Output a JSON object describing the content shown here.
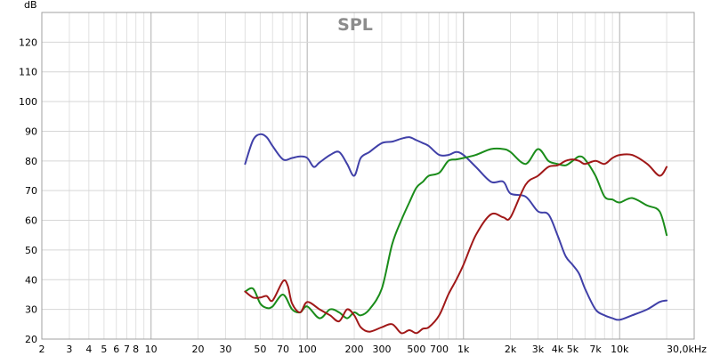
{
  "chart_data": {
    "type": "line",
    "title": "SPL",
    "ylabel": "dB",
    "xunit_label": "30,0kHz",
    "x_scale": "log",
    "xlim": [
      2,
      30000
    ],
    "ylim": [
      20,
      130
    ],
    "grid": true,
    "legend": "none",
    "y_ticks": [
      20,
      30,
      40,
      50,
      60,
      70,
      80,
      90,
      100,
      110,
      120
    ],
    "x_ticks": [
      {
        "value": 2,
        "label": "2"
      },
      {
        "value": 3,
        "label": "3"
      },
      {
        "value": 4,
        "label": "4"
      },
      {
        "value": 5,
        "label": "5"
      },
      {
        "value": 6,
        "label": "6"
      },
      {
        "value": 7,
        "label": "7"
      },
      {
        "value": 8,
        "label": "8"
      },
      {
        "value": 10,
        "label": "10"
      },
      {
        "value": 20,
        "label": "20"
      },
      {
        "value": 30,
        "label": "30"
      },
      {
        "value": 50,
        "label": "50"
      },
      {
        "value": 70,
        "label": "70"
      },
      {
        "value": 100,
        "label": "100"
      },
      {
        "value": 200,
        "label": "200"
      },
      {
        "value": 300,
        "label": "300"
      },
      {
        "value": 500,
        "label": "500"
      },
      {
        "value": 700,
        "label": "700"
      },
      {
        "value": 1000,
        "label": "1k"
      },
      {
        "value": 2000,
        "label": "2k"
      },
      {
        "value": 3000,
        "label": "3k"
      },
      {
        "value": 4000,
        "label": "4k"
      },
      {
        "value": 5000,
        "label": "5k"
      },
      {
        "value": 7000,
        "label": "7k"
      },
      {
        "value": 10000,
        "label": "10k"
      }
    ],
    "series": [
      {
        "color": "#4040a8",
        "x": [
          40,
          45,
          50,
          55,
          60,
          70,
          80,
          90,
          100,
          110,
          120,
          140,
          160,
          180,
          200,
          220,
          250,
          300,
          350,
          400,
          450,
          500,
          550,
          600,
          700,
          800,
          900,
          1000,
          1200,
          1500,
          1800,
          2000,
          2500,
          3000,
          3500,
          4000,
          4500,
          5000,
          5500,
          6000,
          7000,
          8000,
          9000,
          10000,
          12000,
          15000,
          18000,
          20000
        ],
        "y": [
          79,
          87,
          89,
          88,
          85,
          80.5,
          81,
          81.5,
          81,
          78,
          79.5,
          82,
          83,
          79,
          75,
          81,
          83,
          86,
          86.5,
          87.5,
          88,
          87,
          86,
          85,
          82,
          82,
          83,
          82,
          78,
          73,
          73,
          69,
          68,
          63,
          62,
          55,
          48,
          45,
          42,
          37,
          30,
          28,
          27,
          26.5,
          28,
          30,
          32.5,
          33
        ]
      },
      {
        "color": "#1a8c1a",
        "x": [
          40,
          45,
          50,
          55,
          60,
          70,
          80,
          90,
          100,
          120,
          140,
          160,
          180,
          200,
          220,
          250,
          300,
          350,
          400,
          450,
          500,
          550,
          600,
          700,
          800,
          900,
          1000,
          1200,
          1500,
          1800,
          2000,
          2500,
          3000,
          3500,
          4000,
          4500,
          5000,
          5500,
          6000,
          7000,
          8000,
          9000,
          10000,
          12000,
          15000,
          18000,
          20000
        ],
        "y": [
          36,
          37,
          32,
          30.5,
          31,
          35,
          30,
          29,
          31,
          27,
          30,
          29,
          27,
          29,
          28,
          30,
          37,
          52,
          60,
          66,
          71,
          73,
          75,
          76,
          80,
          80.5,
          81,
          82,
          84,
          84,
          83,
          79,
          84,
          80,
          79,
          78.5,
          80,
          81.5,
          80.5,
          75,
          68,
          67,
          66,
          67.5,
          65,
          63,
          55
        ]
      },
      {
        "color": "#a01818",
        "x": [
          40,
          45,
          50,
          55,
          60,
          70,
          75,
          80,
          90,
          100,
          120,
          140,
          160,
          180,
          200,
          220,
          250,
          300,
          350,
          400,
          450,
          500,
          550,
          600,
          700,
          800,
          900,
          1000,
          1200,
          1500,
          1800,
          2000,
          2500,
          3000,
          3500,
          4000,
          4500,
          5000,
          5500,
          6000,
          7000,
          8000,
          9000,
          10000,
          12000,
          15000,
          18000,
          20000
        ],
        "y": [
          36,
          34,
          34,
          34.5,
          33,
          39.5,
          38,
          32,
          29,
          32.5,
          30,
          28,
          26,
          30,
          28,
          24,
          22.5,
          24,
          25,
          22,
          23,
          22,
          23.5,
          24,
          28,
          35,
          40,
          45,
          55,
          62,
          61,
          61,
          72,
          75,
          78,
          78.5,
          80,
          80.5,
          80,
          79,
          80,
          79,
          81,
          82,
          82,
          79,
          75,
          78
        ]
      }
    ]
  }
}
